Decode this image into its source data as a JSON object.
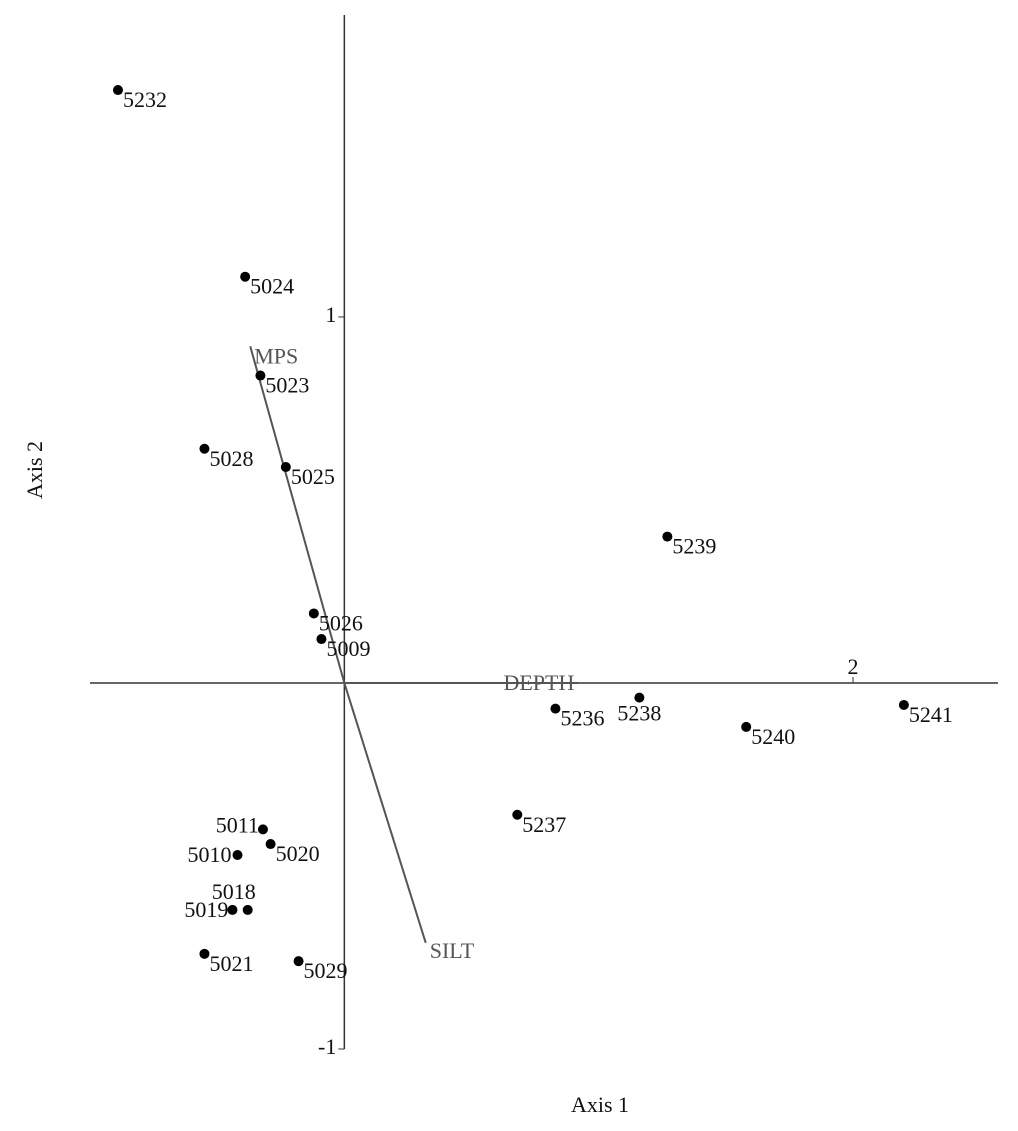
{
  "chart_data": {
    "type": "scatter",
    "x_label": "Axis 1",
    "y_label": "Axis 2",
    "xlim": [
      -1.0,
      2.57
    ],
    "ylim": [
      -1,
      1.825
    ],
    "xticks": [
      2
    ],
    "yticks": [
      -1,
      1
    ],
    "color": "#000000",
    "vector_color": "#555555",
    "labels": [
      "5232",
      "5024",
      "5023",
      "5028",
      "5025",
      "5239",
      "5026",
      "5009",
      "5238",
      "5236",
      "5240",
      "5241",
      "5237",
      "5011",
      "5020",
      "5010",
      "5018",
      "5019",
      "5021",
      "5029"
    ],
    "x": [
      -0.89,
      -0.39,
      -0.33,
      -0.55,
      -0.23,
      1.27,
      -0.12,
      -0.09,
      1.16,
      0.83,
      1.58,
      2.2,
      0.68,
      -0.32,
      -0.29,
      -0.42,
      -0.38,
      -0.44,
      -0.55,
      -0.18
    ],
    "y": [
      1.62,
      1.11,
      0.84,
      0.64,
      0.59,
      0.4,
      0.19,
      0.12,
      -0.04,
      -0.07,
      -0.12,
      -0.06,
      -0.36,
      -0.4,
      -0.44,
      -0.47,
      -0.62,
      -0.62,
      -0.74,
      -0.76
    ],
    "vectors": [
      {
        "label": "MPS",
        "x": -0.37,
        "y": 0.92
      },
      {
        "label": "DEPTH",
        "x": 0.92,
        "y": 0.0
      },
      {
        "label": "SILT",
        "x": 0.32,
        "y": -0.71
      }
    ]
  }
}
